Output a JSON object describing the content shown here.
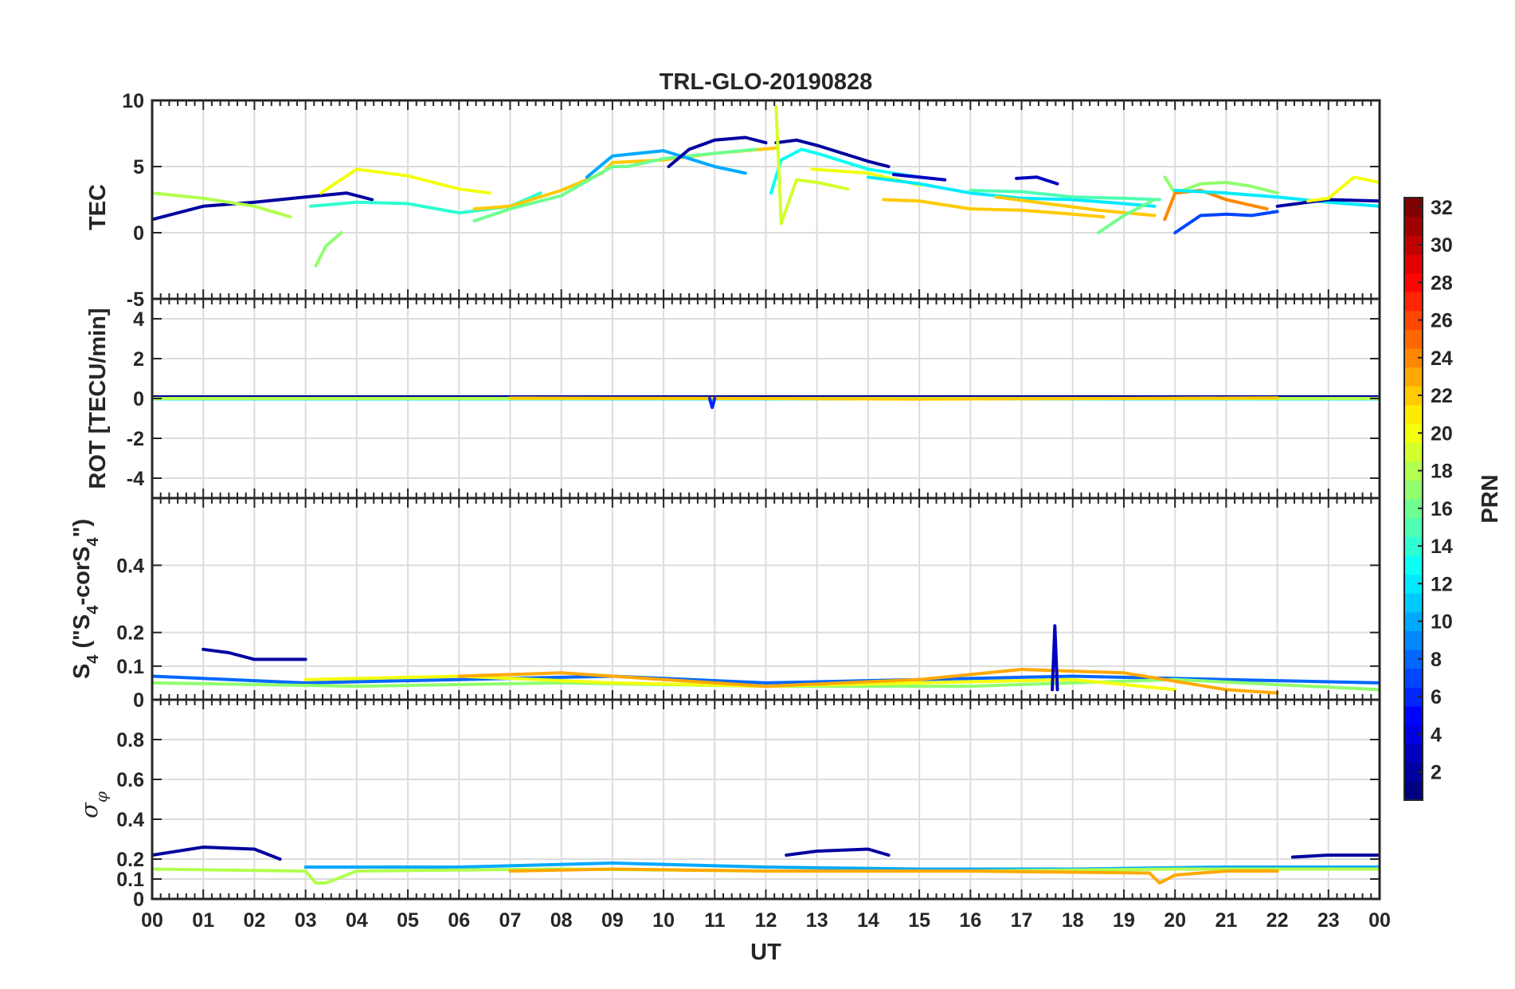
{
  "chart_data": {
    "type": "line",
    "title": "TRL-GLO-20190828",
    "xlabel": "UT",
    "xlim": [
      0,
      24
    ],
    "x_tick_labels": [
      "00",
      "01",
      "02",
      "03",
      "04",
      "05",
      "06",
      "07",
      "08",
      "09",
      "10",
      "11",
      "12",
      "13",
      "14",
      "15",
      "16",
      "17",
      "18",
      "19",
      "20",
      "21",
      "22",
      "23",
      "00"
    ],
    "colorbar": {
      "label": "PRN",
      "range": [
        1,
        32
      ],
      "colormap": "jet",
      "tick_values": [
        2,
        4,
        6,
        8,
        10,
        12,
        14,
        16,
        18,
        20,
        22,
        24,
        26,
        28,
        30,
        32
      ],
      "tick_labels": [
        "2",
        "4",
        "6",
        "8",
        "10",
        "12",
        "14",
        "16",
        "18",
        "20",
        "22",
        "24",
        "26",
        "28",
        "30",
        "32"
      ]
    },
    "panels": [
      {
        "id": "tec",
        "ylabel": "TEC",
        "ylim": [
          -5,
          10
        ],
        "y_ticks": [
          -5,
          0,
          5,
          10
        ],
        "y_tick_labels": [
          "-5",
          "0",
          "5",
          "10"
        ],
        "series": [
          {
            "prn": 2,
            "x": [
              0,
              1,
              2,
              3,
              3.8,
              4.3
            ],
            "y": [
              1.0,
              2.0,
              2.3,
              2.7,
              3.0,
              2.5
            ]
          },
          {
            "prn": 18,
            "x": [
              0,
              1,
              2,
              2.7
            ],
            "y": [
              3.0,
              2.6,
              2.0,
              1.2
            ]
          },
          {
            "prn": 14,
            "x": [
              3.1,
              4,
              5,
              6,
              7,
              7.6
            ],
            "y": [
              2.0,
              2.3,
              2.2,
              1.5,
              2.0,
              3.0
            ]
          },
          {
            "prn": 20,
            "x": [
              3.3,
              4,
              5,
              6,
              6.6
            ],
            "y": [
              3.0,
              4.8,
              4.3,
              3.3,
              3.0
            ]
          },
          {
            "prn": 17,
            "x": [
              3.2,
              3.4,
              3.7
            ],
            "y": [
              -2.5,
              -1.0,
              0.0
            ]
          },
          {
            "prn": 22,
            "x": [
              6.3,
              7,
              8,
              8.8,
              9,
              10,
              11,
              12.2
            ],
            "y": [
              1.8,
              2.0,
              3.2,
              4.5,
              5.3,
              5.5,
              6.0,
              6.4
            ]
          },
          {
            "prn": 16,
            "x": [
              6.3,
              7,
              8,
              9,
              9.3,
              10,
              11,
              11.8
            ],
            "y": [
              0.9,
              1.8,
              2.8,
              5.0,
              5.0,
              5.6,
              6.0,
              6.3
            ]
          },
          {
            "prn": 10,
            "x": [
              8.5,
              9,
              10,
              11,
              11.6
            ],
            "y": [
              4.2,
              5.8,
              6.2,
              5.0,
              4.5
            ]
          },
          {
            "prn": 2,
            "x": [
              10.1,
              10.5,
              11,
              11.6,
              12
            ],
            "y": [
              5.0,
              6.3,
              7.0,
              7.2,
              6.8
            ]
          },
          {
            "prn": 13,
            "x": [
              12.1,
              12.3,
              12.7,
              13,
              14,
              15
            ],
            "y": [
              3.0,
              5.5,
              6.3,
              6.0,
              4.8,
              4.2
            ]
          },
          {
            "prn": 2,
            "x": [
              12.2,
              12.6,
              13,
              14,
              14.4
            ],
            "y": [
              6.8,
              7.0,
              6.6,
              5.4,
              5.0
            ]
          },
          {
            "prn": 19,
            "x": [
              12.2,
              12.3,
              12.6,
              13,
              13.6
            ],
            "y": [
              9.5,
              0.7,
              4.0,
              3.8,
              3.3
            ]
          },
          {
            "prn": 20,
            "x": [
              12.9,
              14,
              15
            ],
            "y": [
              4.8,
              4.5,
              3.6
            ]
          },
          {
            "prn": 3,
            "x": [
              14.5,
              15,
              15.5
            ],
            "y": [
              4.4,
              4.2,
              4.0
            ]
          },
          {
            "prn": 22,
            "x": [
              14.3,
              15,
              16,
              17,
              18,
              18.6
            ],
            "y": [
              2.5,
              2.4,
              1.8,
              1.7,
              1.4,
              1.2
            ]
          },
          {
            "prn": 12,
            "x": [
              14,
              15,
              16,
              17,
              18,
              19,
              19.6
            ],
            "y": [
              4.2,
              3.7,
              3.0,
              2.6,
              2.5,
              2.2,
              2.0
            ]
          },
          {
            "prn": 15,
            "x": [
              16,
              17,
              18,
              19,
              19.7
            ],
            "y": [
              3.2,
              3.1,
              2.7,
              2.6,
              2.5
            ]
          },
          {
            "prn": 3,
            "x": [
              16.9,
              17.3,
              17.7
            ],
            "y": [
              4.1,
              4.2,
              3.7
            ]
          },
          {
            "prn": 22,
            "x": [
              16.5,
              17.5,
              18.5,
              19.6
            ],
            "y": [
              2.7,
              2.2,
              1.7,
              1.3
            ]
          },
          {
            "prn": 16,
            "x": [
              18.5,
              19,
              19.6
            ],
            "y": [
              0.0,
              1.3,
              2.5
            ]
          },
          {
            "prn": 17,
            "x": [
              19.8,
              20,
              20.5,
              21,
              21.5,
              22
            ],
            "y": [
              4.2,
              3.0,
              3.7,
              3.8,
              3.5,
              3.0
            ]
          },
          {
            "prn": 24,
            "x": [
              19.8,
              20,
              20.5,
              21,
              21.8
            ],
            "y": [
              1.0,
              3.0,
              3.2,
              2.5,
              1.8
            ]
          },
          {
            "prn": 7,
            "x": [
              20,
              20.5,
              21,
              21.5,
              22
            ],
            "y": [
              0.0,
              1.3,
              1.4,
              1.3,
              1.6
            ]
          },
          {
            "prn": 12,
            "x": [
              20,
              21,
              22,
              23,
              24
            ],
            "y": [
              3.2,
              3.0,
              2.7,
              2.3,
              2.0
            ]
          },
          {
            "prn": 2,
            "x": [
              22,
              23,
              24
            ],
            "y": [
              2.0,
              2.5,
              2.4
            ]
          },
          {
            "prn": 20,
            "x": [
              22.6,
              23,
              23.5,
              24
            ],
            "y": [
              2.4,
              2.6,
              4.2,
              3.8
            ]
          }
        ]
      },
      {
        "id": "rot",
        "ylabel": "ROT [TECU/min]",
        "ylim": [
          -5,
          5
        ],
        "y_ticks": [
          -4,
          -2,
          0,
          2,
          4
        ],
        "y_tick_labels": [
          "-4",
          "-2",
          "0",
          "2",
          "4"
        ],
        "series": [
          {
            "prn": 2,
            "x": [
              0,
              24
            ],
            "y": [
              0.08,
              0.08
            ]
          },
          {
            "prn": 12,
            "x": [
              0,
              24
            ],
            "y": [
              -0.02,
              -0.02
            ]
          },
          {
            "prn": 18,
            "x": [
              0,
              7,
              14,
              24
            ],
            "y": [
              0.0,
              0.0,
              0.0,
              0.0
            ]
          },
          {
            "prn": 22,
            "x": [
              7,
              12,
              15,
              22
            ],
            "y": [
              0.02,
              0.0,
              -0.03,
              0.03
            ]
          },
          {
            "prn": 6,
            "x": [
              10.9,
              10.95,
              11.0
            ],
            "y": [
              0.0,
              -0.45,
              0.0
            ]
          }
        ]
      },
      {
        "id": "s4",
        "ylabel": "S4 (\"S4-corS4\")",
        "ylim": [
          0,
          0.6
        ],
        "y_ticks": [
          0,
          0.1,
          0.2,
          0.4
        ],
        "y_tick_labels": [
          "0",
          "0.1",
          "0.2",
          "0.4"
        ],
        "series": [
          {
            "prn": 2,
            "x": [
              1,
              1.5,
              2,
              2.5,
              3
            ],
            "y": [
              0.15,
              0.14,
              0.12,
              0.12,
              0.12
            ]
          },
          {
            "prn": 8,
            "x": [
              0,
              3,
              6,
              9,
              12,
              15,
              18,
              21,
              24
            ],
            "y": [
              0.07,
              0.05,
              0.06,
              0.07,
              0.05,
              0.06,
              0.07,
              0.06,
              0.05
            ]
          },
          {
            "prn": 17,
            "x": [
              0,
              4,
              8,
              12,
              16,
              20,
              24
            ],
            "y": [
              0.05,
              0.04,
              0.05,
              0.04,
              0.04,
              0.06,
              0.03
            ]
          },
          {
            "prn": 20,
            "x": [
              3,
              6,
              9,
              12,
              15,
              18,
              20
            ],
            "y": [
              0.06,
              0.07,
              0.05,
              0.04,
              0.05,
              0.06,
              0.03
            ]
          },
          {
            "prn": 23,
            "x": [
              6,
              8,
              10,
              12,
              15,
              17,
              19,
              21,
              22
            ],
            "y": [
              0.07,
              0.08,
              0.06,
              0.04,
              0.06,
              0.09,
              0.08,
              0.03,
              0.02
            ]
          },
          {
            "prn": 3,
            "x": [
              17.6,
              17.65,
              17.7
            ],
            "y": [
              0.03,
              0.22,
              0.03
            ]
          }
        ]
      },
      {
        "id": "sigma",
        "ylabel": "σφ",
        "ylim": [
          0,
          1
        ],
        "y_ticks": [
          0,
          0.1,
          0.2,
          0.4,
          0.6,
          0.8
        ],
        "y_tick_labels": [
          "0",
          "0.1",
          "0.2",
          "0.4",
          "0.6",
          "0.8"
        ],
        "series": [
          {
            "prn": 2,
            "x": [
              0,
              1,
              2,
              2.5
            ],
            "y": [
              0.22,
              0.26,
              0.25,
              0.2
            ]
          },
          {
            "prn": 2,
            "x": [
              12.4,
              13,
              14,
              14.4
            ],
            "y": [
              0.22,
              0.24,
              0.25,
              0.22
            ]
          },
          {
            "prn": 2,
            "x": [
              22.3,
              23,
              24
            ],
            "y": [
              0.21,
              0.22,
              0.22
            ]
          },
          {
            "prn": 10,
            "x": [
              3,
              6,
              9,
              12,
              15,
              18,
              21,
              24
            ],
            "y": [
              0.16,
              0.16,
              0.18,
              0.16,
              0.15,
              0.15,
              0.16,
              0.16
            ]
          },
          {
            "prn": 18,
            "x": [
              0,
              3,
              3.2,
              3.4,
              4,
              8,
              12,
              16,
              20,
              24
            ],
            "y": [
              0.15,
              0.14,
              0.08,
              0.08,
              0.14,
              0.15,
              0.14,
              0.14,
              0.15,
              0.15
            ]
          },
          {
            "prn": 23,
            "x": [
              7,
              9,
              12,
              16,
              19.5,
              19.7,
              20,
              21,
              22
            ],
            "y": [
              0.14,
              0.15,
              0.14,
              0.14,
              0.13,
              0.08,
              0.12,
              0.14,
              0.14
            ]
          }
        ]
      }
    ]
  }
}
